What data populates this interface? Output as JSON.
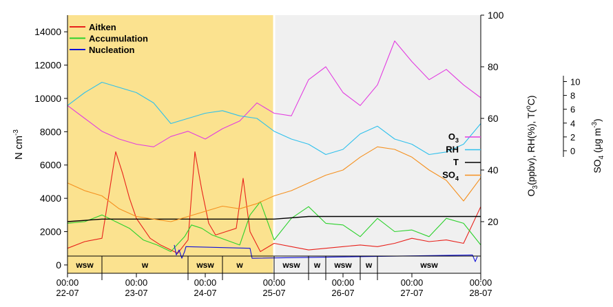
{
  "chart_data": {
    "type": "line",
    "x_ticks": [
      {
        "time": "00:00",
        "date": "22-07"
      },
      {
        "time": "00:00",
        "date": "23-07"
      },
      {
        "time": "00:00",
        "date": "24-07"
      },
      {
        "time": "00:00",
        "date": "25-07"
      },
      {
        "time": "00:00",
        "date": "26-07"
      },
      {
        "time": "00:00",
        "date": "27-07"
      },
      {
        "time": "00:00",
        "date": "28-07"
      }
    ],
    "y_left": {
      "label": "N cm",
      "label_sup": "-3",
      "range": [
        -500,
        15000
      ],
      "ticks": [
        0,
        2000,
        4000,
        6000,
        8000,
        10000,
        12000,
        14000
      ]
    },
    "y_right1": {
      "label": "O",
      "label_sub": "3",
      "label_rest": "(ppbv), RH(%), T(",
      "label_deg": "o",
      "label_end": "C)",
      "range": [
        0,
        100
      ],
      "ticks": [
        20,
        40,
        60,
        80,
        100
      ]
    },
    "y_right2": {
      "label": "SO",
      "label_sub": "4",
      "label_mid": " (μg m",
      "label_sup": "-3",
      "label_end": ")",
      "ticks": [
        0,
        2,
        4,
        6,
        8,
        10
      ]
    },
    "shaded_regions": [
      {
        "from_day": 0,
        "to_day": 3,
        "color": "#fbe28f"
      },
      {
        "from_day": 3,
        "to_day": 6,
        "color": "#f0f0f0"
      }
    ],
    "wind_sectors": [
      {
        "label": "wsw",
        "from": 0,
        "to": 0.5
      },
      {
        "label": "w",
        "from": 0.5,
        "to": 1.75
      },
      {
        "label": "wsw",
        "from": 1.75,
        "to": 2.25
      },
      {
        "label": "w",
        "from": 2.25,
        "to": 2.75
      },
      {
        "label": "wsw",
        "from": 3.0,
        "to": 3.5
      },
      {
        "label": "w",
        "from": 3.5,
        "to": 3.75
      },
      {
        "label": "wsw",
        "from": 3.75,
        "to": 4.25
      },
      {
        "label": "w",
        "from": 4.25,
        "to": 4.5
      },
      {
        "label": "wsw",
        "from": 4.5,
        "to": 6.0
      }
    ],
    "legend_left": [
      {
        "name": "Aitken",
        "color": "#e8201a"
      },
      {
        "name": "Accumulation",
        "color": "#2bd12b"
      },
      {
        "name": "Nucleation",
        "color": "#1010d8"
      }
    ],
    "legend_right": [
      {
        "name": "O",
        "sub": "3",
        "color": "#e23ce0"
      },
      {
        "name": "RH",
        "sub": "",
        "color": "#2ec0ec"
      },
      {
        "name": "T",
        "sub": "",
        "color": "#000000"
      },
      {
        "name": "SO",
        "sub": "4",
        "color": "#f5901e"
      }
    ],
    "series": [
      {
        "name": "Aitken",
        "axis": "left",
        "color": "#e8201a",
        "x": [
          0,
          0.25,
          0.5,
          0.7,
          0.8,
          0.9,
          1.0,
          1.1,
          1.2,
          1.35,
          1.5,
          1.6,
          1.75,
          1.85,
          1.95,
          2.05,
          2.15,
          2.3,
          2.45,
          2.55,
          2.65,
          2.8,
          3.0,
          3.25,
          3.5,
          3.75,
          4.0,
          4.25,
          4.5,
          4.75,
          5.0,
          5.25,
          5.5,
          5.75,
          6.0
        ],
        "y": [
          1000,
          1400,
          1600,
          6800,
          5500,
          4000,
          2800,
          2200,
          1600,
          1200,
          900,
          700,
          1500,
          6800,
          4500,
          2500,
          1800,
          2000,
          2200,
          5200,
          2000,
          800,
          1300,
          1100,
          900,
          1000,
          1100,
          1200,
          1100,
          1300,
          1600,
          1400,
          1500,
          1300,
          3500
        ]
      },
      {
        "name": "Accumulation",
        "axis": "left",
        "color": "#2bd12b",
        "x": [
          0,
          0.25,
          0.5,
          0.7,
          0.9,
          1.1,
          1.3,
          1.5,
          1.7,
          1.8,
          1.95,
          2.1,
          2.3,
          2.5,
          2.65,
          2.8,
          3.0,
          3.25,
          3.5,
          3.75,
          4.0,
          4.25,
          4.5,
          4.75,
          5.0,
          5.25,
          5.5,
          5.75,
          6.0
        ],
        "y": [
          2500,
          2600,
          3000,
          2600,
          2200,
          1500,
          1200,
          800,
          1700,
          2400,
          2200,
          1800,
          1500,
          1200,
          3000,
          3800,
          1500,
          2800,
          3500,
          2500,
          2400,
          1700,
          2800,
          2000,
          2100,
          1700,
          2800,
          2500,
          1200
        ]
      },
      {
        "name": "Nucleation",
        "axis": "left",
        "color": "#1010d8",
        "x": [
          1.55,
          1.58,
          1.62,
          1.66,
          1.7,
          1.72,
          2.65,
          2.68,
          5.88,
          5.92,
          5.95
        ],
        "y": [
          1200,
          600,
          900,
          400,
          800,
          1100,
          1000,
          400,
          600,
          200,
          500
        ]
      },
      {
        "name": "O3",
        "axis": "right1",
        "color": "#e23ce0",
        "x": [
          0,
          0.25,
          0.5,
          0.75,
          1.0,
          1.25,
          1.5,
          1.75,
          2.0,
          2.25,
          2.5,
          2.75,
          3.0,
          3.25,
          3.5,
          3.75,
          4.0,
          4.25,
          4.5,
          4.75,
          5.0,
          5.25,
          5.5,
          5.75,
          6.0
        ],
        "y": [
          65,
          60,
          55,
          52,
          50,
          49,
          53,
          55,
          52,
          56,
          59,
          66,
          62,
          61,
          75,
          80,
          70,
          65,
          73,
          90,
          82,
          75,
          79,
          73,
          68
        ]
      },
      {
        "name": "RH",
        "axis": "right1",
        "color": "#2ec0ec",
        "x": [
          0,
          0.25,
          0.5,
          0.75,
          1.0,
          1.25,
          1.5,
          1.75,
          2.0,
          2.25,
          2.5,
          2.75,
          3.0,
          3.25,
          3.5,
          3.75,
          4.0,
          4.25,
          4.5,
          4.75,
          5.0,
          5.25,
          5.5,
          5.75,
          6.0
        ],
        "y": [
          65,
          70,
          74,
          72,
          70,
          66,
          58,
          60,
          62,
          63,
          61,
          60,
          55,
          52,
          50,
          46,
          48,
          54,
          57,
          52,
          50,
          46,
          47,
          50,
          58
        ]
      },
      {
        "name": "T",
        "axis": "right1",
        "color": "#000000",
        "x": [
          0,
          0.5,
          1.0,
          1.5,
          2.0,
          2.5,
          3.0,
          3.5,
          4.0,
          4.5,
          5.0,
          5.5,
          6.0
        ],
        "y": [
          20,
          21,
          21,
          21,
          21,
          21,
          21,
          22,
          22,
          22,
          22,
          22,
          22
        ]
      },
      {
        "name": "SO4",
        "axis": "right1",
        "color": "#f5901e",
        "x": [
          0,
          0.25,
          0.5,
          0.75,
          1.0,
          1.25,
          1.5,
          1.75,
          2.0,
          2.25,
          2.5,
          2.75,
          3.0,
          3.25,
          3.5,
          3.75,
          4.0,
          4.25,
          4.5,
          4.75,
          5.0,
          5.25,
          5.5,
          5.75,
          6.0
        ],
        "y": [
          35,
          32,
          30,
          25,
          22,
          21,
          20,
          22,
          24,
          26,
          25,
          27,
          30,
          32,
          35,
          38,
          40,
          45,
          49,
          48,
          45,
          40,
          36,
          28,
          37
        ]
      }
    ]
  }
}
